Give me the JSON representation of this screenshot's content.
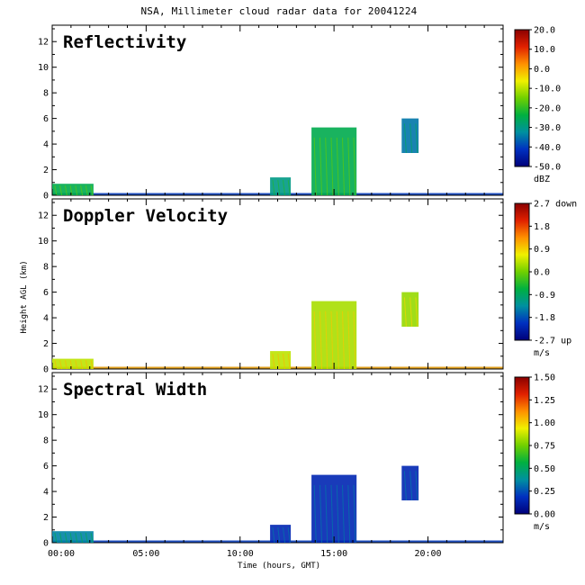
{
  "title": "NSA, Millimeter cloud radar data for 20041224",
  "ylabel": "Height AGL (km)",
  "xlabel": "Time (hours, GMT)",
  "chart_data": [
    {
      "type": "heatmap",
      "panel": "Reflectivity",
      "x_ticks": [
        "00:00",
        "05:00",
        "10:00",
        "15:00",
        "20:00"
      ],
      "xlim": [
        0,
        24
      ],
      "ylim": [
        0,
        13
      ],
      "y_ticks": [
        "0",
        "2",
        "4",
        "6",
        "8",
        "10",
        "12"
      ],
      "colorbar": {
        "unit": "dBZ",
        "labels": [
          "20.0",
          "10.0",
          "0.0",
          "-10.0",
          "-20.0",
          "-30.0",
          "-40.0",
          "-50.0"
        ],
        "range": [
          -50,
          20
        ]
      },
      "cloud_regions": [
        {
          "t_start": 0.0,
          "t_end": 2.2,
          "h_bottom": 0.0,
          "h_top": 0.9,
          "value": -25
        },
        {
          "t_start": 11.6,
          "t_end": 12.7,
          "h_bottom": 0.0,
          "h_top": 1.4,
          "value": -30
        },
        {
          "t_start": 13.8,
          "t_end": 16.2,
          "h_bottom": 0.0,
          "h_top": 5.3,
          "value": -25
        },
        {
          "t_start": 18.6,
          "t_end": 19.5,
          "h_bottom": 3.3,
          "h_top": 6.0,
          "value": -35
        }
      ]
    },
    {
      "type": "heatmap",
      "panel": "Doppler Velocity",
      "x_ticks": [
        "00:00",
        "05:00",
        "10:00",
        "15:00",
        "20:00"
      ],
      "xlim": [
        0,
        24
      ],
      "ylim": [
        0,
        13
      ],
      "y_ticks": [
        "0",
        "2",
        "4",
        "6",
        "8",
        "10",
        "12"
      ],
      "colorbar": {
        "unit": "m/s",
        "labels": [
          "2.7 down",
          "1.8",
          "0.9",
          "0.0",
          "-0.9",
          "-1.8",
          "-2.7 up"
        ],
        "range": [
          -2.7,
          2.7
        ]
      },
      "cloud_regions": [
        {
          "t_start": 0.0,
          "t_end": 2.2,
          "h_bottom": 0.0,
          "h_top": 0.8,
          "value": 0.4
        },
        {
          "t_start": 11.6,
          "t_end": 12.7,
          "h_bottom": 0.0,
          "h_top": 1.4,
          "value": 0.4
        },
        {
          "t_start": 13.8,
          "t_end": 16.2,
          "h_bottom": 0.0,
          "h_top": 5.3,
          "value": 0.3
        },
        {
          "t_start": 18.6,
          "t_end": 19.5,
          "h_bottom": 3.3,
          "h_top": 6.0,
          "value": 0.2
        }
      ]
    },
    {
      "type": "heatmap",
      "panel": "Spectral Width",
      "x_ticks": [
        "00:00",
        "05:00",
        "10:00",
        "15:00",
        "20:00"
      ],
      "xlim": [
        0,
        24
      ],
      "ylim": [
        0,
        13
      ],
      "y_ticks": [
        "0",
        "2",
        "4",
        "6",
        "8",
        "10",
        "12"
      ],
      "colorbar": {
        "unit": "m/s",
        "labels": [
          "1.50",
          "1.25",
          "1.00",
          "0.75",
          "0.50",
          "0.25",
          "0.00"
        ],
        "range": [
          0,
          1.5
        ]
      },
      "cloud_regions": [
        {
          "t_start": 0.0,
          "t_end": 2.2,
          "h_bottom": 0.0,
          "h_top": 0.9,
          "value": 0.35
        },
        {
          "t_start": 11.6,
          "t_end": 12.7,
          "h_bottom": 0.0,
          "h_top": 1.4,
          "value": 0.15
        },
        {
          "t_start": 13.8,
          "t_end": 16.2,
          "h_bottom": 0.0,
          "h_top": 5.3,
          "value": 0.15
        },
        {
          "t_start": 18.6,
          "t_end": 19.5,
          "h_bottom": 3.3,
          "h_top": 6.0,
          "value": 0.15
        }
      ]
    }
  ]
}
